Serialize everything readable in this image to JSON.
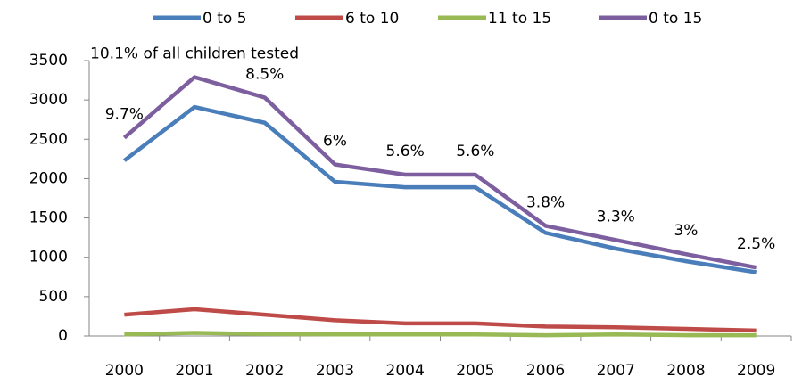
{
  "chart_data": {
    "type": "line",
    "categories": [
      "2000",
      "2001",
      "2002",
      "2003",
      "2004",
      "2005",
      "2006",
      "2007",
      "2008",
      "2009"
    ],
    "series": [
      {
        "name": "0 to 5",
        "color": "#4a7ebb",
        "values": [
          2230,
          2910,
          2710,
          1960,
          1890,
          1890,
          1310,
          1110,
          950,
          810
        ]
      },
      {
        "name": "6 to 10",
        "color": "#be4b48",
        "values": [
          270,
          340,
          270,
          200,
          160,
          160,
          120,
          110,
          90,
          70
        ]
      },
      {
        "name": "11 to 15",
        "color": "#98b954",
        "values": [
          20,
          40,
          25,
          20,
          20,
          20,
          10,
          20,
          10,
          10
        ]
      },
      {
        "name": "0 to 15",
        "color": "#7d5fa0",
        "values": [
          2520,
          3290,
          3030,
          2180,
          2050,
          2050,
          1400,
          1220,
          1040,
          870
        ]
      }
    ],
    "annotations": [
      "9.7%",
      "10.1% of all children tested",
      "8.5%",
      "6%",
      "5.6%",
      "5.6%",
      "3.8%",
      "3.3%",
      "3%",
      "2.5%"
    ],
    "ylim": [
      0,
      3500
    ],
    "yticks": [
      0,
      500,
      1000,
      1500,
      2000,
      2500,
      3000,
      3500
    ],
    "grid": false,
    "legend": "top"
  }
}
